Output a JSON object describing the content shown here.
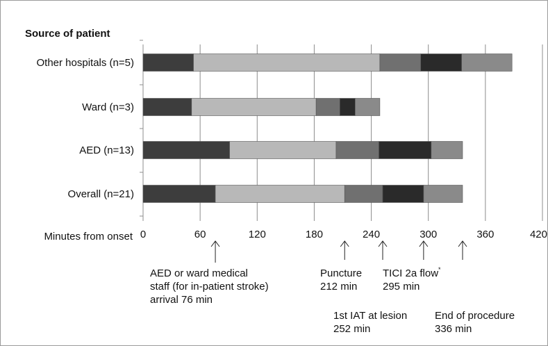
{
  "chart_data": {
    "type": "bar",
    "orientation": "horizontal",
    "stacked": true,
    "y_title": "Source of patient",
    "x_title": "Minutes from onset",
    "xlim": [
      0,
      420
    ],
    "x_ticks": [
      "0",
      "60",
      "120",
      "180",
      "240",
      "300",
      "360",
      "420"
    ],
    "x_tick_values": [
      0,
      60,
      120,
      180,
      240,
      300,
      360,
      420
    ],
    "grid": true,
    "categories": [
      "Other hospitals (n=5)",
      "Ward (n=3)",
      "AED (n=13)",
      "Overall (n=21)"
    ],
    "segment_colors": [
      "#3d3d3d",
      "#b8b8b8",
      "#707070",
      "#2a2a2a",
      "#8a8a8a"
    ],
    "bars": [
      {
        "category": "Other hospitals (n=5)",
        "boundaries": [
          0,
          53,
          249,
          292,
          335,
          388
        ]
      },
      {
        "category": "Ward (n=3)",
        "boundaries": [
          0,
          51,
          182,
          207,
          223,
          249
        ]
      },
      {
        "category": "AED (n=13)",
        "boundaries": [
          0,
          91,
          203,
          248,
          303,
          336
        ]
      },
      {
        "category": "Overall (n=21)",
        "boundaries": [
          0,
          76,
          212,
          252,
          295,
          336
        ]
      }
    ],
    "annotations": [
      {
        "x": 76,
        "lines": [
          "AED or ward medical",
          "staff (for in-patient stroke)",
          "arrival 76 min"
        ]
      },
      {
        "x": 212,
        "lines": [
          "Puncture",
          "212 min"
        ]
      },
      {
        "x": 252,
        "lines": [
          "1st IAT at lesion",
          "252 min"
        ]
      },
      {
        "x": 295,
        "lines": [
          "TICI 2a flow",
          "295 min"
        ],
        "superscript": "*"
      },
      {
        "x": 336,
        "lines": [
          "End of procedure",
          "336 min"
        ]
      }
    ]
  }
}
